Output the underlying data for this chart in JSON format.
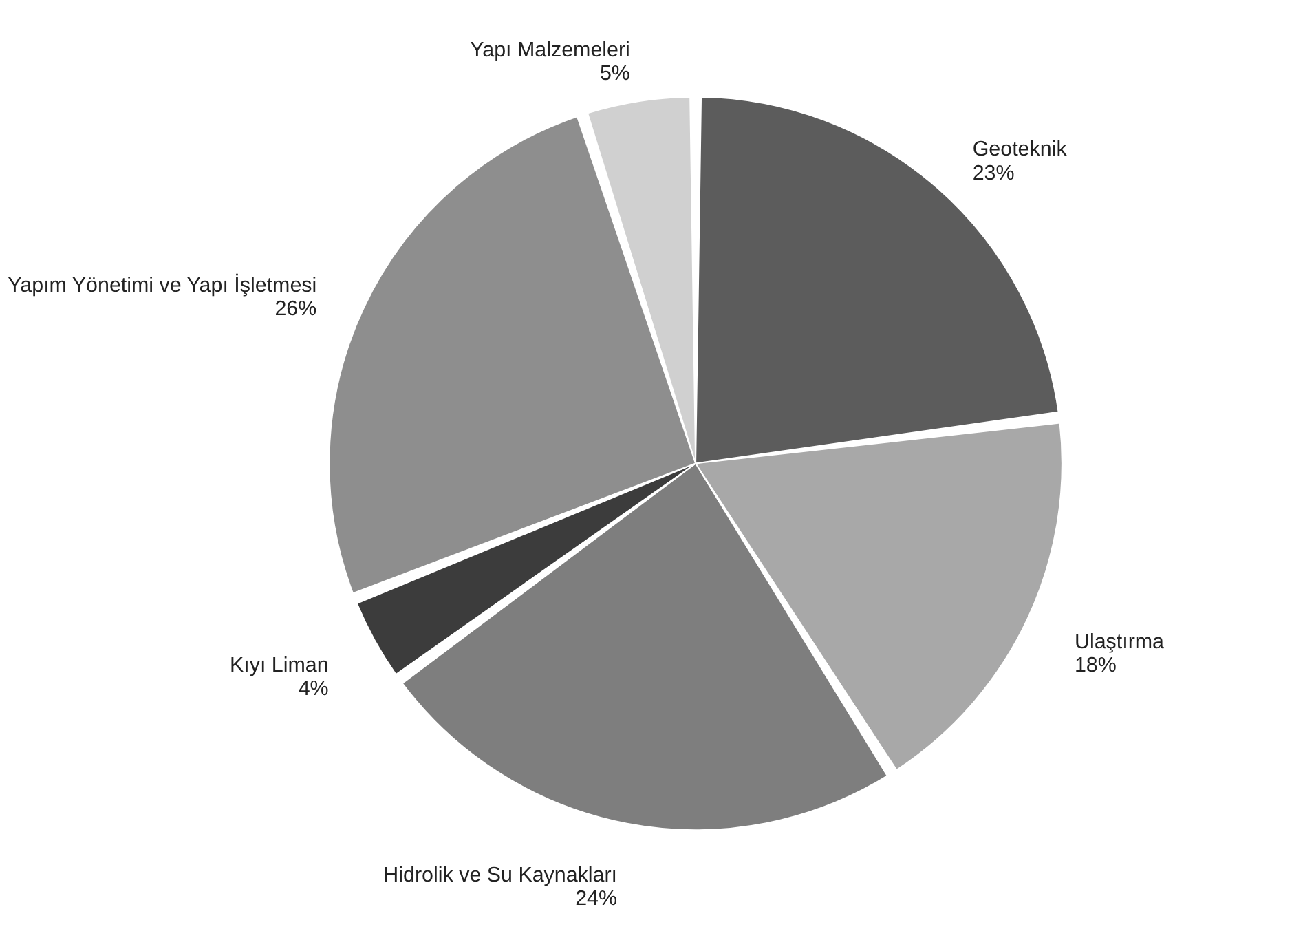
{
  "chart_data": {
    "type": "pie",
    "categories": [
      "Geoteknik",
      "Ulaştırma",
      "Hidrolik ve Su Kaynakları",
      "Kıyı Liman",
      "Yapım Yönetimi ve Yapı İşletmesi",
      "Yapı Malzemeleri"
    ],
    "values": [
      23,
      18,
      24,
      4,
      26,
      5
    ],
    "value_labels": [
      "23%",
      "18%",
      "24%",
      "4%",
      "26%",
      "5%"
    ],
    "colors": [
      "#5c5c5c",
      "#a8a8a8",
      "#7e7e7e",
      "#3c3c3c",
      "#8e8e8e",
      "#d0d0d0"
    ],
    "legend": false
  }
}
